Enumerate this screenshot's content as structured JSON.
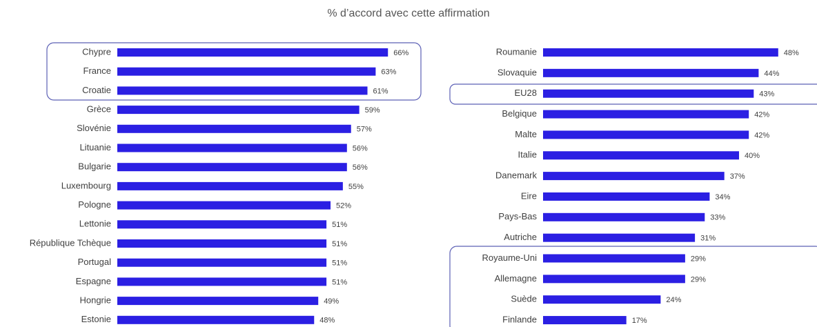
{
  "title": "% d’accord avec cette affirmation",
  "chart_data": [
    {
      "type": "bar",
      "orientation": "horizontal",
      "color": "#2b1fe3",
      "xlim": [
        0,
        70
      ],
      "categories": [
        "Chypre",
        "France",
        "Croatie",
        "Grèce",
        "Slovénie",
        "Lituanie",
        "Bulgarie",
        "Luxembourg",
        "Pologne",
        "Lettonie",
        "République Tchèque",
        "Portugal",
        "Espagne",
        "Hongrie",
        "Estonie"
      ],
      "values": [
        66,
        63,
        61,
        59,
        57,
        56,
        56,
        55,
        52,
        51,
        51,
        51,
        51,
        49,
        48
      ],
      "value_labels": [
        "66%",
        "63%",
        "61%",
        "59%",
        "57%",
        "56%",
        "56%",
        "55%",
        "52%",
        "51%",
        "51%",
        "51%",
        "51%",
        "49%",
        "48%"
      ]
    },
    {
      "type": "bar",
      "orientation": "horizontal",
      "color": "#2b1fe3",
      "xlim": [
        0,
        50
      ],
      "categories": [
        "Roumanie",
        "Slovaquie",
        "EU28",
        "Belgique",
        "Malte",
        "Italie",
        "Danemark",
        "Eire",
        "Pays-Bas",
        "Autriche",
        "Royaume-Uni",
        "Allemagne",
        "Suède",
        "Finlande"
      ],
      "values": [
        48,
        44,
        43,
        42,
        42,
        40,
        37,
        34,
        33,
        31,
        29,
        29,
        24,
        17
      ],
      "value_labels": [
        "48%",
        "44%",
        "43%",
        "42%",
        "42%",
        "40%",
        "37%",
        "34%",
        "33%",
        "31%",
        "29%",
        "29%",
        "24%",
        "17%"
      ]
    }
  ]
}
